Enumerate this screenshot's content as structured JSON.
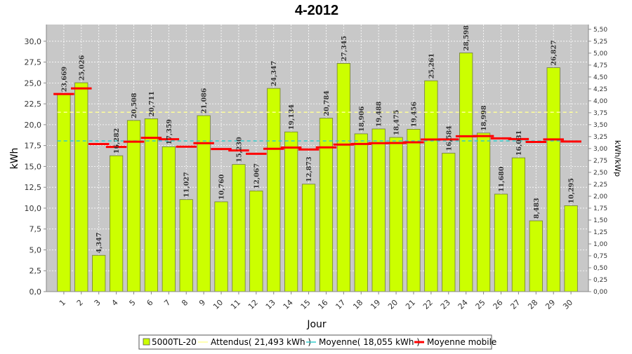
{
  "chart_data": {
    "type": "bar",
    "title": "4-2012",
    "xlabel": "Jour",
    "ylabel": "kWh",
    "y2label": "kWh/kWp",
    "ylim": [
      0,
      32
    ],
    "y2lim": [
      0,
      5.6
    ],
    "yticks": [
      "0,0",
      "2,5",
      "5,0",
      "7,5",
      "10,0",
      "12,5",
      "15,0",
      "17,5",
      "20,0",
      "22,5",
      "25,0",
      "27,5",
      "30,0"
    ],
    "y2ticks": [
      "0,00",
      "0,25",
      "0,50",
      "0,75",
      "1,00",
      "1,25",
      "1,50",
      "1,75",
      "2,00",
      "2,25",
      "2,50",
      "2,75",
      "3,00",
      "3,25",
      "3,50",
      "3,75",
      "4,00",
      "4,25",
      "4,50",
      "4,75",
      "5,00",
      "5,25",
      "5,50"
    ],
    "grid": true,
    "legend_position": "bottom",
    "colors": {
      "bar": "#ccff00",
      "expected": "#ffff99",
      "average": "#33cccc",
      "moving": "#ff0000",
      "plot_bg": "#c8c8c8"
    },
    "categories": [
      "1",
      "2",
      "3",
      "4",
      "5",
      "6",
      "7",
      "8",
      "9",
      "10",
      "11",
      "12",
      "13",
      "14",
      "15",
      "16",
      "17",
      "18",
      "19",
      "20",
      "21",
      "22",
      "23",
      "24",
      "25",
      "26",
      "27",
      "28",
      "29",
      "30"
    ],
    "series": [
      {
        "name": "5000TL-20",
        "values": [
          23.669,
          25.026,
          4.347,
          16.282,
          20.508,
          20.711,
          17.359,
          11.027,
          21.086,
          10.76,
          15.23,
          12.067,
          24.347,
          19.134,
          12.873,
          20.784,
          27.345,
          18.906,
          19.488,
          18.475,
          19.456,
          25.261,
          16.584,
          28.598,
          18.998,
          11.68,
          16.031,
          8.483,
          26.827,
          10.295
        ],
        "labels": [
          "23,669",
          "25,026",
          "4,347",
          "16,282",
          "20,508",
          "20,711",
          "17,359",
          "11,027",
          "21,086",
          "10,760",
          "15,230",
          "12,067",
          "24,347",
          "19,134",
          "12,873",
          "20,784",
          "27,345",
          "18,906",
          "19,488",
          "18,475",
          "19,456",
          "25,261",
          "16,584",
          "28,598",
          "18,998",
          "11,680",
          "16,031",
          "8,483",
          "26,827",
          "10,295"
        ]
      },
      {
        "name": "Attendus( 21,493 kWh )",
        "value": 21.493
      },
      {
        "name": "Moyenne( 18,055 kWh )",
        "value": 18.055
      },
      {
        "name": "Moyenne mobile",
        "values": [
          23.67,
          24.35,
          17.68,
          17.33,
          17.96,
          18.42,
          18.26,
          17.36,
          17.78,
          17.08,
          16.91,
          16.51,
          17.11,
          17.26,
          17.03,
          17.28,
          17.62,
          17.69,
          17.78,
          17.81,
          17.89,
          18.23,
          18.24,
          18.61,
          18.63,
          18.36,
          18.28,
          17.93,
          18.24,
          17.98
        ]
      }
    ]
  }
}
